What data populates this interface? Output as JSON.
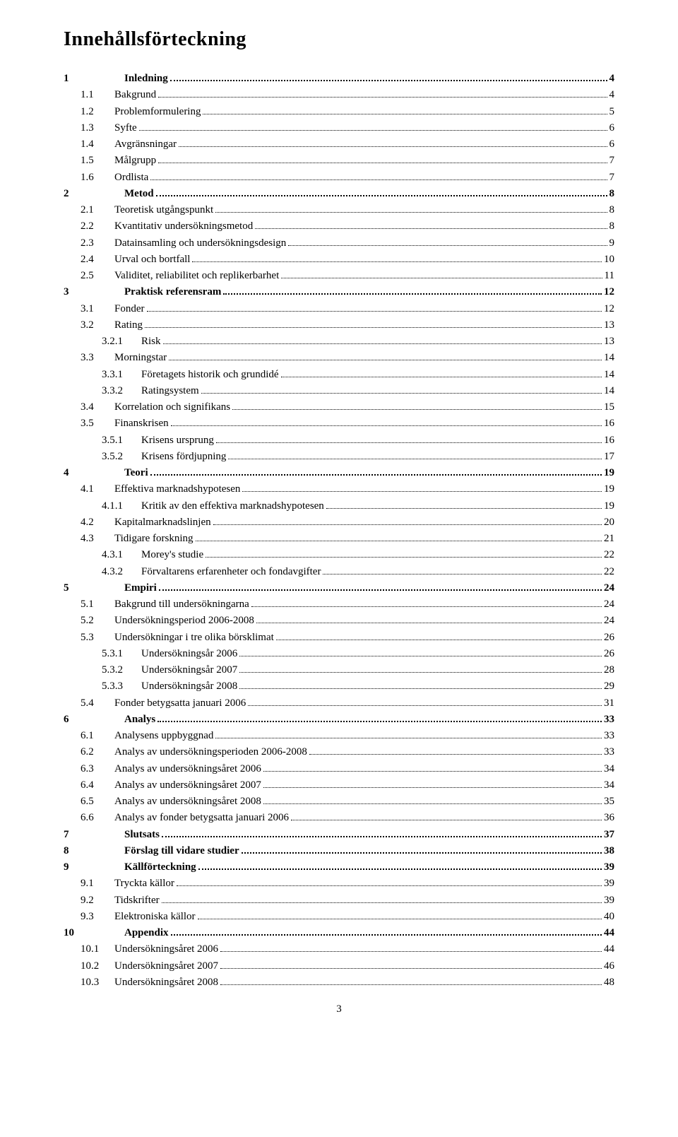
{
  "title": "Innehållsförteckning",
  "page_number": "3",
  "colors": {
    "background": "#ffffff",
    "text": "#000000",
    "dots": "#000000"
  },
  "typography": {
    "family": "Times New Roman",
    "title_size_pt": 21,
    "body_size_pt": 11
  },
  "entries": [
    {
      "level": 1,
      "num": "1",
      "text": "Inledning",
      "page": "4"
    },
    {
      "level": 2,
      "num": "1.1",
      "text": "Bakgrund",
      "page": "4"
    },
    {
      "level": 2,
      "num": "1.2",
      "text": "Problemformulering",
      "page": "5"
    },
    {
      "level": 2,
      "num": "1.3",
      "text": "Syfte",
      "page": "6"
    },
    {
      "level": 2,
      "num": "1.4",
      "text": "Avgränsningar",
      "page": "6"
    },
    {
      "level": 2,
      "num": "1.5",
      "text": "Målgrupp",
      "page": "7"
    },
    {
      "level": 2,
      "num": "1.6",
      "text": "Ordlista",
      "page": "7"
    },
    {
      "level": 1,
      "num": "2",
      "text": "Metod",
      "page": "8"
    },
    {
      "level": 2,
      "num": "2.1",
      "text": "Teoretisk utgångspunkt",
      "page": "8"
    },
    {
      "level": 2,
      "num": "2.2",
      "text": "Kvantitativ undersökningsmetod",
      "page": "8"
    },
    {
      "level": 2,
      "num": "2.3",
      "text": "Datainsamling och undersökningsdesign",
      "page": "9"
    },
    {
      "level": 2,
      "num": "2.4",
      "text": "Urval och bortfall",
      "page": "10"
    },
    {
      "level": 2,
      "num": "2.5",
      "text": "Validitet, reliabilitet och replikerbarhet",
      "page": "11"
    },
    {
      "level": 1,
      "num": "3",
      "text": "Praktisk referensram",
      "page": "12"
    },
    {
      "level": 2,
      "num": "3.1",
      "text": "Fonder",
      "page": "12"
    },
    {
      "level": 2,
      "num": "3.2",
      "text": "Rating",
      "page": "13"
    },
    {
      "level": 3,
      "num": "3.2.1",
      "text": "Risk",
      "page": "13"
    },
    {
      "level": 2,
      "num": "3.3",
      "text": "Morningstar",
      "page": "14"
    },
    {
      "level": 3,
      "num": "3.3.1",
      "text": "Företagets historik och grundidé",
      "page": "14"
    },
    {
      "level": 3,
      "num": "3.3.2",
      "text": "Ratingsystem",
      "page": "14"
    },
    {
      "level": 2,
      "num": "3.4",
      "text": "Korrelation och signifikans",
      "page": "15"
    },
    {
      "level": 2,
      "num": "3.5",
      "text": "Finanskrisen",
      "page": "16"
    },
    {
      "level": 3,
      "num": "3.5.1",
      "text": "Krisens ursprung",
      "page": "16"
    },
    {
      "level": 3,
      "num": "3.5.2",
      "text": "Krisens fördjupning",
      "page": "17"
    },
    {
      "level": 1,
      "num": "4",
      "text": "Teori",
      "page": "19"
    },
    {
      "level": 2,
      "num": "4.1",
      "text": "Effektiva marknadshypotesen",
      "page": "19"
    },
    {
      "level": 3,
      "num": "4.1.1",
      "text": "Kritik av den effektiva marknadshypotesen",
      "page": "19"
    },
    {
      "level": 2,
      "num": "4.2",
      "text": "Kapitalmarknadslinjen",
      "page": "20"
    },
    {
      "level": 2,
      "num": "4.3",
      "text": "Tidigare forskning",
      "page": "21"
    },
    {
      "level": 3,
      "num": "4.3.1",
      "text": "Morey's studie",
      "page": "22"
    },
    {
      "level": 3,
      "num": "4.3.2",
      "text": "Förvaltarens erfarenheter och fondavgifter",
      "page": "22"
    },
    {
      "level": 1,
      "num": "5",
      "text": "Empiri",
      "page": "24"
    },
    {
      "level": 2,
      "num": "5.1",
      "text": "Bakgrund till undersökningarna",
      "page": "24"
    },
    {
      "level": 2,
      "num": "5.2",
      "text": "Undersökningsperiod 2006-2008",
      "page": "24"
    },
    {
      "level": 2,
      "num": "5.3",
      "text": "Undersökningar i tre olika börsklimat",
      "page": "26"
    },
    {
      "level": 3,
      "num": "5.3.1",
      "text": "Undersökningsår 2006",
      "page": "26"
    },
    {
      "level": 3,
      "num": "5.3.2",
      "text": "Undersökningsår 2007",
      "page": "28"
    },
    {
      "level": 3,
      "num": "5.3.3",
      "text": "Undersökningsår 2008",
      "page": "29"
    },
    {
      "level": 2,
      "num": "5.4",
      "text": "Fonder betygsatta januari 2006",
      "page": "31"
    },
    {
      "level": 1,
      "num": "6",
      "text": "Analys",
      "page": "33"
    },
    {
      "level": 2,
      "num": "6.1",
      "text": "Analysens uppbyggnad",
      "page": "33"
    },
    {
      "level": 2,
      "num": "6.2",
      "text": "Analys av undersökningsperioden 2006-2008",
      "page": "33"
    },
    {
      "level": 2,
      "num": "6.3",
      "text": "Analys av undersökningsåret 2006",
      "page": "34"
    },
    {
      "level": 2,
      "num": "6.4",
      "text": "Analys av undersökningsåret 2007",
      "page": "34"
    },
    {
      "level": 2,
      "num": "6.5",
      "text": "Analys av undersökningsåret 2008",
      "page": "35"
    },
    {
      "level": 2,
      "num": "6.6",
      "text": "Analys av fonder betygsatta januari 2006",
      "page": "36"
    },
    {
      "level": 1,
      "num": "7",
      "text": "Slutsats",
      "page": "37"
    },
    {
      "level": 1,
      "num": "8",
      "text": "Förslag till vidare studier",
      "page": "38"
    },
    {
      "level": 1,
      "num": "9",
      "text": "Källförteckning",
      "page": "39"
    },
    {
      "level": 2,
      "num": "9.1",
      "text": "Tryckta källor",
      "page": "39"
    },
    {
      "level": 2,
      "num": "9.2",
      "text": "Tidskrifter",
      "page": "39"
    },
    {
      "level": 2,
      "num": "9.3",
      "text": "Elektroniska källor",
      "page": "40"
    },
    {
      "level": 1,
      "num": "10",
      "text": "Appendix",
      "page": "44"
    },
    {
      "level": 2,
      "num": "10.1",
      "text": "Undersökningsåret 2006",
      "page": "44"
    },
    {
      "level": 2,
      "num": "10.2",
      "text": "Undersökningsåret 2007",
      "page": "46"
    },
    {
      "level": 2,
      "num": "10.3",
      "text": "Undersökningsåret 2008",
      "page": "48"
    }
  ]
}
